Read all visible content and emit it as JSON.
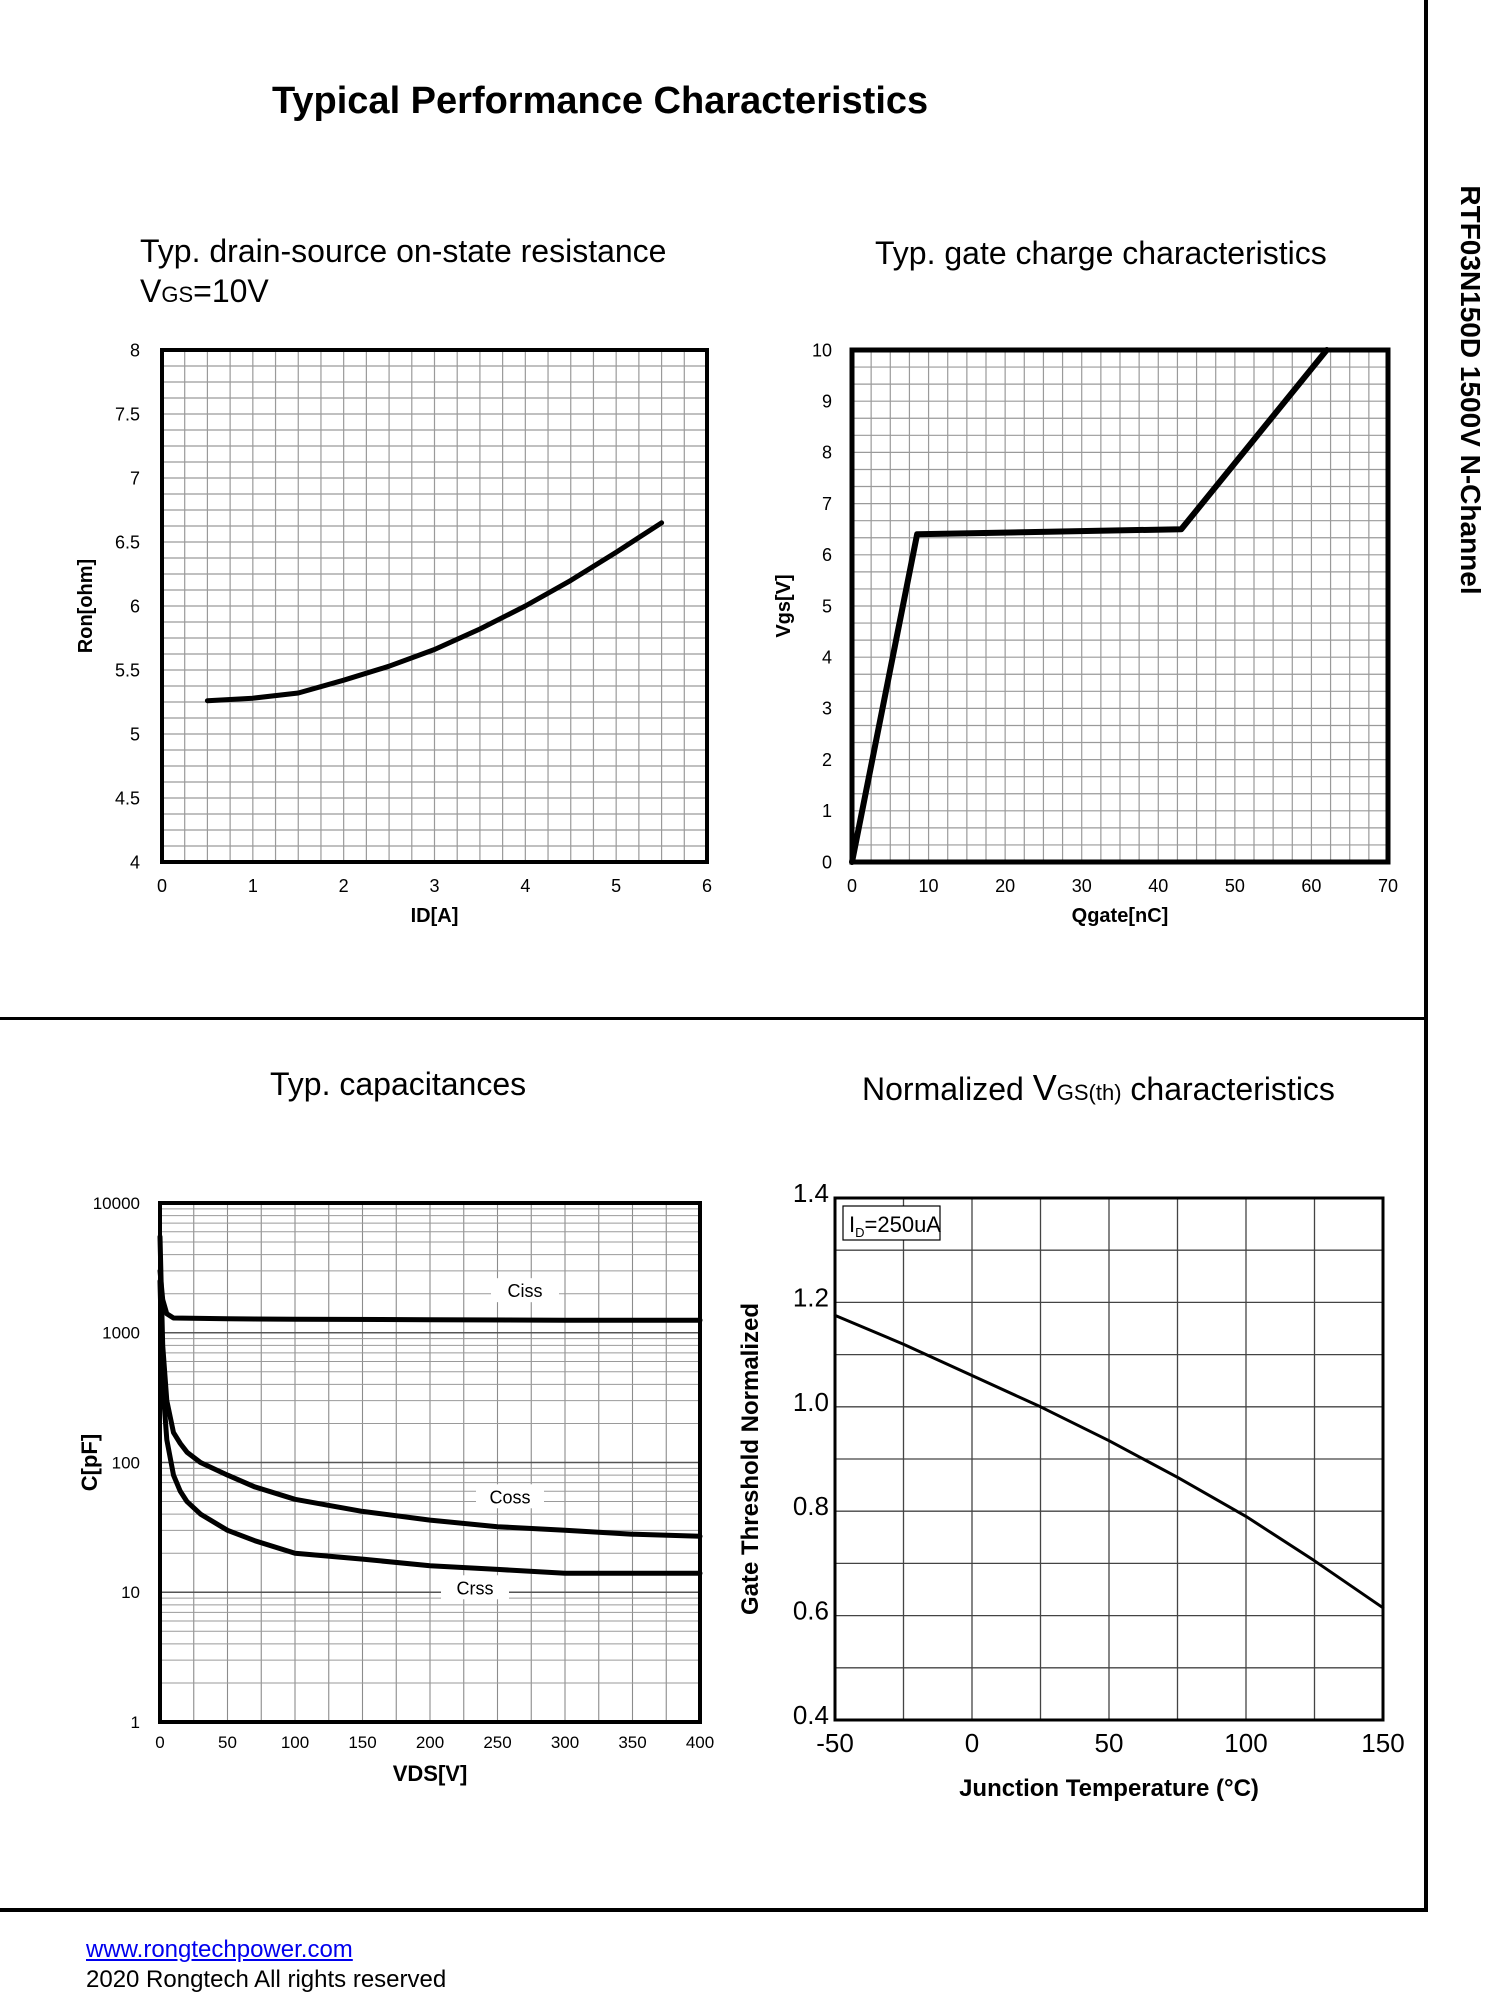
{
  "header": {
    "title": "Typical Performance Characteristics",
    "side_label": "RTF03N150D 1500V N-Channel"
  },
  "footer": {
    "website": "www.rongtechpower.com",
    "copyright": "2020 Rongtech All rights reserved"
  },
  "chart_data": [
    {
      "id": "ron",
      "type": "line",
      "title": "Typ. drain-source on-state resistance",
      "subtitle_main": "V",
      "subtitle_sub": "GS",
      "subtitle_tail": "=10V",
      "xlabel": "ID[A]",
      "ylabel": "Ron[ohm]",
      "xlim": [
        0,
        6
      ],
      "ylim": [
        4,
        8
      ],
      "x_ticks": [
        "0",
        "1",
        "2",
        "3",
        "4",
        "5",
        "6"
      ],
      "y_ticks": [
        "4",
        "4.5",
        "5",
        "5.5",
        "6",
        "6.5",
        "7",
        "7.5",
        "8"
      ],
      "series": [
        {
          "name": "Ron",
          "x": [
            0.5,
            1.0,
            1.5,
            2.0,
            2.5,
            3.0,
            3.5,
            4.0,
            4.5,
            5.0,
            5.5
          ],
          "y": [
            5.26,
            5.28,
            5.32,
            5.42,
            5.53,
            5.66,
            5.82,
            6.0,
            6.2,
            6.42,
            6.65
          ]
        }
      ]
    },
    {
      "id": "qg",
      "type": "line",
      "title": "Typ. gate charge characteristics",
      "xlabel": "Qgate[nC]",
      "ylabel": "Vgs[V]",
      "xlim": [
        0,
        70
      ],
      "ylim": [
        0,
        10
      ],
      "x_ticks": [
        "0",
        "10",
        "20",
        "30",
        "40",
        "50",
        "60",
        "70"
      ],
      "y_ticks": [
        "0",
        "1",
        "2",
        "3",
        "4",
        "5",
        "6",
        "7",
        "8",
        "9",
        "10"
      ],
      "series": [
        {
          "name": "Vgs",
          "x": [
            0,
            8.5,
            43,
            62
          ],
          "y": [
            0,
            6.4,
            6.5,
            10
          ]
        }
      ]
    },
    {
      "id": "cap",
      "type": "line",
      "title": "Typ. capacitances",
      "xlabel": "VDS[V]",
      "ylabel": "C[pF]",
      "xlim": [
        0,
        400
      ],
      "ylim": [
        1,
        10000
      ],
      "y_scale": "log",
      "x_ticks": [
        "0",
        "50",
        "100",
        "150",
        "200",
        "250",
        "300",
        "350",
        "400"
      ],
      "y_ticks": [
        "1",
        "10",
        "100",
        "1000",
        "10000"
      ],
      "series": [
        {
          "name": "Ciss",
          "x": [
            0,
            2,
            5,
            10,
            50,
            100,
            200,
            300,
            400
          ],
          "y": [
            3000,
            1800,
            1400,
            1300,
            1280,
            1270,
            1260,
            1250,
            1250
          ]
        },
        {
          "name": "Coss",
          "x": [
            0,
            2,
            5,
            10,
            15,
            20,
            30,
            50,
            70,
            100,
            150,
            200,
            250,
            300,
            350,
            400
          ],
          "y": [
            5500,
            800,
            300,
            170,
            140,
            120,
            100,
            80,
            65,
            52,
            42,
            36,
            32,
            30,
            28,
            27
          ]
        },
        {
          "name": "Crss",
          "x": [
            0,
            2,
            5,
            10,
            15,
            20,
            30,
            50,
            70,
            100,
            150,
            200,
            250,
            300,
            350,
            400
          ],
          "y": [
            2500,
            400,
            150,
            80,
            60,
            50,
            40,
            30,
            25,
            20,
            18,
            16,
            15,
            14,
            14,
            14
          ]
        }
      ]
    },
    {
      "id": "vth",
      "type": "line",
      "title": "Normalized ",
      "title_main": "V",
      "title_sub": "GS(th)",
      "title_tail": " characteristics",
      "annotation_main": "I",
      "annotation_sub": "D",
      "annotation_tail": "=250uA",
      "xlabel": "Junction Temperature (°C)",
      "ylabel": "Gate Threshold Normalized",
      "xlim": [
        -50,
        150
      ],
      "ylim": [
        0.4,
        1.4
      ],
      "x_ticks": [
        "-50",
        "0",
        "50",
        "100",
        "150"
      ],
      "y_ticks": [
        "0.4",
        "0.6",
        "0.8",
        "1.0",
        "1.2",
        "1.4"
      ],
      "series": [
        {
          "name": "Vth",
          "x": [
            -50,
            -25,
            0,
            25,
            50,
            75,
            100,
            125,
            150
          ],
          "y": [
            1.175,
            1.12,
            1.06,
            1.0,
            0.935,
            0.865,
            0.79,
            0.705,
            0.615
          ]
        }
      ]
    }
  ]
}
